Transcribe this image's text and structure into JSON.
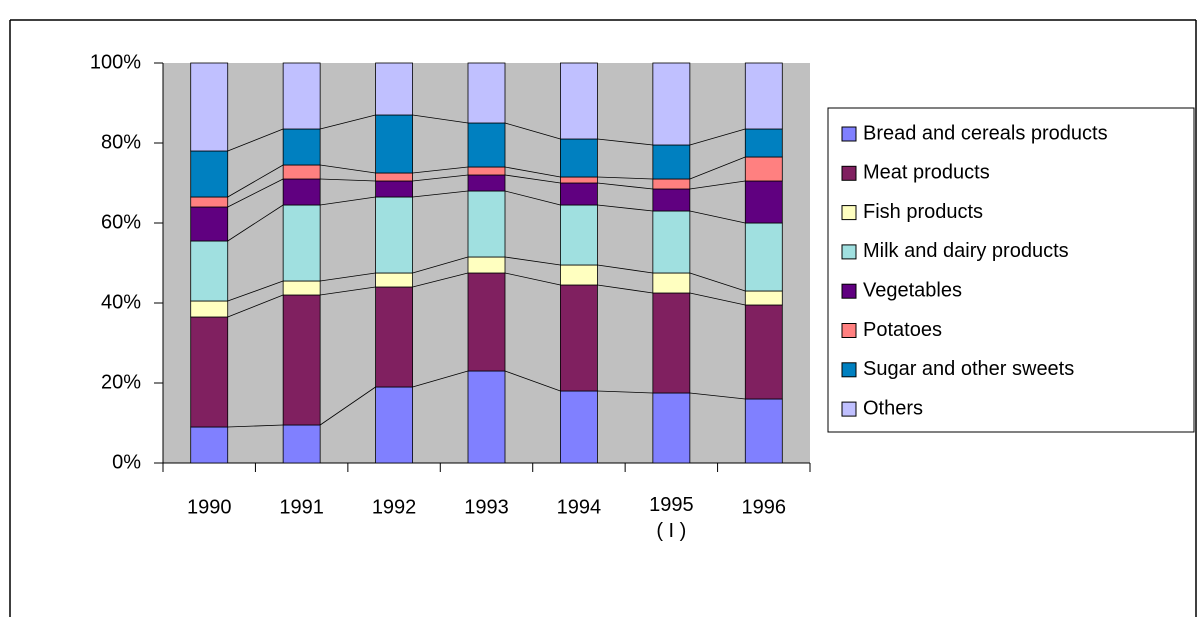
{
  "chart_data": {
    "type": "stacked_bar_100",
    "categories": [
      "1990",
      "1991",
      "1992",
      "1993",
      "1994",
      "1995\n( I )",
      "1996"
    ],
    "series": [
      {
        "name": "Bread and cereals products",
        "color": "#8080ff",
        "values": [
          9,
          9.5,
          19,
          23,
          18,
          17.5,
          16
        ]
      },
      {
        "name": "Meat products",
        "color": "#802060",
        "values": [
          27.5,
          32.5,
          25,
          24.5,
          26.5,
          25,
          23.5
        ]
      },
      {
        "name": "Fish products",
        "color": "#ffffc0",
        "values": [
          4,
          3.5,
          3.5,
          4,
          5,
          5,
          3.5
        ]
      },
      {
        "name": "Milk and dairy products",
        "color": "#a0e0e0",
        "values": [
          15,
          19,
          19,
          16.5,
          15,
          15.5,
          17
        ]
      },
      {
        "name": "Vegetables",
        "color": "#600080",
        "values": [
          8.5,
          6.5,
          4,
          4,
          5.5,
          5.5,
          10.5
        ]
      },
      {
        "name": "Potatoes",
        "color": "#ff8080",
        "values": [
          2.5,
          3.5,
          2,
          2,
          1.5,
          2.5,
          6
        ]
      },
      {
        "name": "Sugar and other sweets",
        "color": "#0080c0",
        "values": [
          11.5,
          9,
          14.5,
          11,
          9.5,
          8.5,
          7
        ]
      },
      {
        "name": "Others",
        "color": "#c0c0ff",
        "values": [
          22,
          16.5,
          13,
          15,
          19,
          20.5,
          16.5
        ]
      }
    ],
    "ylim": [
      0,
      100
    ],
    "yticks": [
      {
        "value": 0,
        "label": "0%"
      },
      {
        "value": 20,
        "label": "20%"
      },
      {
        "value": 40,
        "label": "40%"
      },
      {
        "value": 60,
        "label": "60%"
      },
      {
        "value": 80,
        "label": "80%"
      },
      {
        "value": 100,
        "label": "100%"
      }
    ],
    "legend": "right"
  }
}
